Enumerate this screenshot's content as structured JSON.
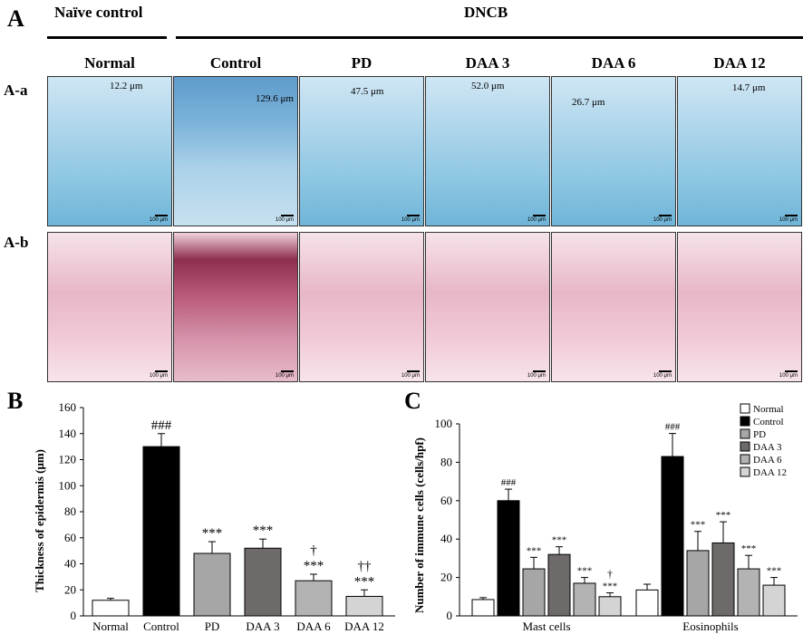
{
  "figure": {
    "panel_letters": {
      "a": "A",
      "b": "B",
      "c": "C"
    },
    "row_labels": {
      "aa": "A-a",
      "ab": "A-b"
    },
    "groups": {
      "naive": "Naïve control",
      "dncb": "DNCB"
    },
    "columns": [
      "Normal",
      "Control",
      "PD",
      "DAA 3",
      "DAA 6",
      "DAA 12"
    ],
    "thickness_labels": [
      "12.2 μm",
      "129.6 μm",
      "47.5 μm",
      "52.0 μm",
      "26.7 μm",
      "14.7 μm"
    ],
    "scale_bar": "100 μm"
  },
  "colors": {
    "normal": "#ffffff",
    "control": "#000000",
    "pd": "#a6a6a6",
    "daa3": "#6e6a6a",
    "daa6": "#b3b3b3",
    "daa12": "#d4d4d4"
  },
  "chart_data": [
    {
      "type": "bar",
      "panel": "B",
      "categories": [
        "Normal",
        "Control",
        "PD",
        "DAA 3",
        "DAA 6",
        "DAA 12"
      ],
      "values": [
        12,
        130,
        48,
        52,
        27,
        15
      ],
      "errors": [
        1.5,
        10,
        9,
        7,
        5,
        5
      ],
      "annotations_top": [
        "",
        "###",
        "***",
        "***",
        "***",
        "***"
      ],
      "annotations_dagger": [
        "",
        "",
        "",
        "",
        "†",
        "††"
      ],
      "ylabel": "Thickness of epidermis (μm)",
      "xlabel": "",
      "ylim": [
        0,
        160
      ],
      "yticks": [
        0,
        20,
        40,
        60,
        80,
        100,
        120,
        140,
        160
      ]
    },
    {
      "type": "bar",
      "panel": "C",
      "categories": [
        "Mast cells",
        "Eosinophils"
      ],
      "series": [
        {
          "name": "Normal",
          "values": [
            8.5,
            13.5
          ],
          "errors": [
            1,
            3
          ],
          "marks": [
            "",
            ""
          ],
          "dagger": [
            "",
            ""
          ]
        },
        {
          "name": "Control",
          "values": [
            60,
            83
          ],
          "errors": [
            6,
            12
          ],
          "marks": [
            "###",
            "###"
          ],
          "dagger": [
            "",
            ""
          ]
        },
        {
          "name": "PD",
          "values": [
            24.5,
            34
          ],
          "errors": [
            6,
            10
          ],
          "marks": [
            "***",
            "***"
          ],
          "dagger": [
            "",
            ""
          ]
        },
        {
          "name": "DAA 3",
          "values": [
            32,
            38
          ],
          "errors": [
            4,
            11
          ],
          "marks": [
            "***",
            "***"
          ],
          "dagger": [
            "",
            ""
          ]
        },
        {
          "name": "DAA 6",
          "values": [
            17,
            24.5
          ],
          "errors": [
            3,
            7
          ],
          "marks": [
            "***",
            "***"
          ],
          "dagger": [
            "",
            ""
          ]
        },
        {
          "name": "DAA 12",
          "values": [
            10,
            16
          ],
          "errors": [
            2,
            4
          ],
          "marks": [
            "***",
            "***"
          ],
          "dagger": [
            "†",
            ""
          ]
        }
      ],
      "ylabel": "Number of immune cells (cells/hpf)",
      "xlabel": "",
      "ylim": [
        0,
        100
      ],
      "yticks": [
        0,
        20,
        40,
        60,
        80,
        100
      ],
      "legend": "top-right"
    }
  ]
}
